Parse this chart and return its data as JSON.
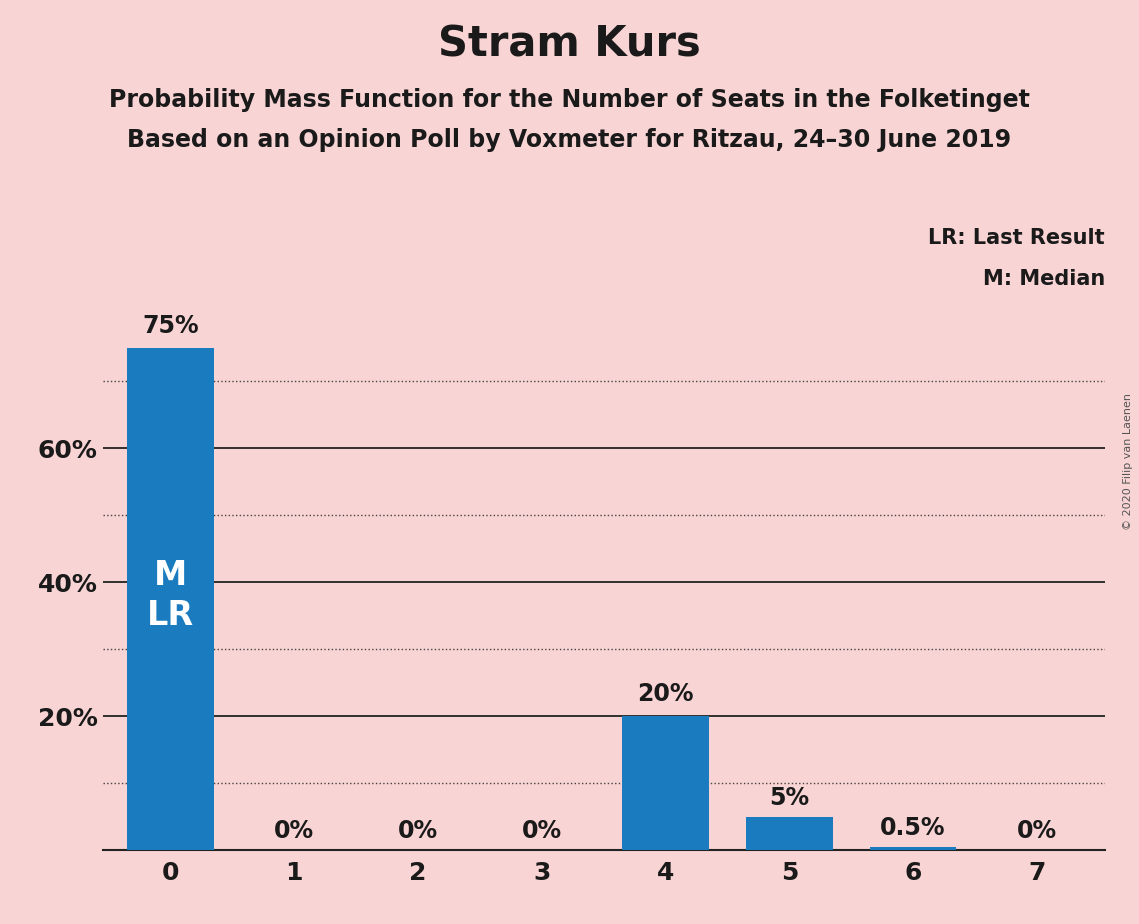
{
  "title": "Stram Kurs",
  "subtitle1": "Probability Mass Function for the Number of Seats in the Folketinget",
  "subtitle2": "Based on an Opinion Poll by Voxmeter for Ritzau, 24–30 June 2019",
  "copyright": "© 2020 Filip van Laenen",
  "categories": [
    0,
    1,
    2,
    3,
    4,
    5,
    6,
    7
  ],
  "values": [
    75.0,
    0.0,
    0.0,
    0.0,
    20.0,
    5.0,
    0.5,
    0.0
  ],
  "bar_color": "#1a7bbf",
  "background_color": "#f9d4d4",
  "bar_labels": [
    "75%",
    "0%",
    "0%",
    "0%",
    "20%",
    "5%",
    "0.5%",
    "0%"
  ],
  "bar_label_color": "#1a1a1a",
  "bar_label_color_inside": "#ffffff",
  "ylim": [
    0,
    80
  ],
  "ytick_positions": [
    20,
    40,
    60
  ],
  "ytick_labels": [
    "20%",
    "40%",
    "60%"
  ],
  "solid_yticks": [
    20,
    40,
    60
  ],
  "dotted_yticks": [
    10,
    30,
    50,
    70
  ],
  "legend_lr": "LR: Last Result",
  "legend_m": "M: Median",
  "title_fontsize": 30,
  "subtitle_fontsize": 17,
  "bar_label_fontsize": 17,
  "ylabel_fontsize": 18,
  "xlabel_fontsize": 18,
  "legend_fontsize": 15,
  "mlr_fontsize": 24
}
